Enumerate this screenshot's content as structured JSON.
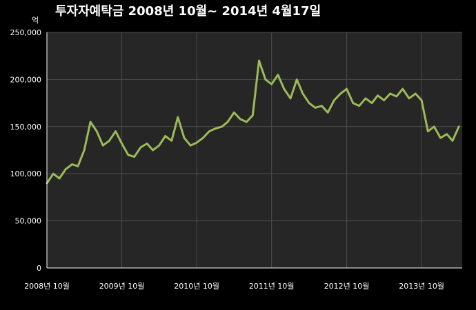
{
  "chart_data": {
    "type": "line",
    "title": "투자자예탁금    2008년 10월~ 2014년 4월17일",
    "unit": "억",
    "ylim": [
      0,
      250000
    ],
    "yticks": [
      "0",
      "50,000",
      "100,000",
      "150,000",
      "200,000",
      "250,000"
    ],
    "xticks": [
      "2008년 10월",
      "2009년 10월",
      "2010년 10월",
      "2011년 10월",
      "2012년 10월",
      "2013년 10월"
    ],
    "x_range": [
      "2008-10",
      "2014-04-17"
    ],
    "grid": true,
    "colors": {
      "line": "#9bbb59",
      "plot_bg": "#262626",
      "page_bg": "#000000",
      "grid": "#4d4d4d"
    },
    "series": [
      {
        "x": [
          "2008-10",
          "2008-11",
          "2008-12",
          "2009-01",
          "2009-02",
          "2009-03",
          "2009-04",
          "2009-05",
          "2009-06",
          "2009-07",
          "2009-08",
          "2009-09",
          "2009-10",
          "2009-11",
          "2009-12",
          "2010-01",
          "2010-02",
          "2010-03",
          "2010-04",
          "2010-05",
          "2010-06",
          "2010-07",
          "2010-08",
          "2010-09",
          "2010-10",
          "2010-11",
          "2010-12",
          "2011-01",
          "2011-02",
          "2011-03",
          "2011-04",
          "2011-05",
          "2011-06",
          "2011-07",
          "2011-08",
          "2011-09",
          "2011-10",
          "2011-11",
          "2011-12",
          "2012-01",
          "2012-02",
          "2012-03",
          "2012-04",
          "2012-05",
          "2012-06",
          "2012-07",
          "2012-08",
          "2012-09",
          "2012-10",
          "2012-11",
          "2012-12",
          "2013-01",
          "2013-02",
          "2013-03",
          "2013-04",
          "2013-05",
          "2013-06",
          "2013-07",
          "2013-08",
          "2013-09",
          "2013-10",
          "2013-11",
          "2013-12",
          "2014-01",
          "2014-02",
          "2014-03",
          "2014-04"
        ],
        "values": [
          90000,
          100000,
          95000,
          105000,
          110000,
          108000,
          125000,
          155000,
          145000,
          130000,
          135000,
          145000,
          132000,
          120000,
          118000,
          128000,
          132000,
          125000,
          130000,
          140000,
          135000,
          160000,
          138000,
          130000,
          133000,
          138000,
          145000,
          148000,
          150000,
          155000,
          165000,
          158000,
          155000,
          162000,
          220000,
          200000,
          195000,
          205000,
          190000,
          180000,
          200000,
          185000,
          175000,
          170000,
          172000,
          165000,
          178000,
          185000,
          190000,
          175000,
          172000,
          180000,
          175000,
          183000,
          178000,
          185000,
          182000,
          190000,
          180000,
          185000,
          178000,
          145000,
          150000,
          138000,
          142000,
          135000,
          150000
        ]
      }
    ]
  }
}
